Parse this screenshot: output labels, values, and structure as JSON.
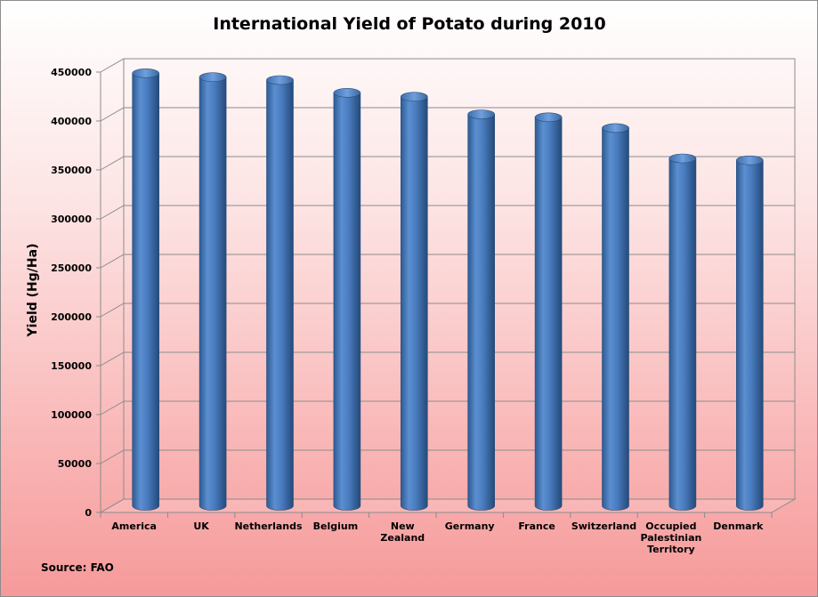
{
  "chart_data": {
    "type": "bar",
    "title": "International Yield of Potato during 2010",
    "ylabel": "Yield (Hg/Ha)",
    "xlabel": "",
    "categories": [
      "America",
      "UK",
      "Netherlands",
      "Belgium",
      "New Zealand",
      "Germany",
      "France",
      "Switzerland",
      "Occupied Palestinian Territory",
      "Denmark"
    ],
    "category_lines": [
      [
        "America"
      ],
      [
        "UK"
      ],
      [
        "Netherlands"
      ],
      [
        "Belgium"
      ],
      [
        "New",
        "Zealand"
      ],
      [
        "Germany"
      ],
      [
        "France"
      ],
      [
        "Switzerland"
      ],
      [
        "Occupied",
        "Palestinian",
        "Territory"
      ],
      [
        "Denmark"
      ]
    ],
    "values": [
      442000,
      438000,
      435000,
      422000,
      418000,
      400000,
      397000,
      386000,
      355000,
      353000
    ],
    "ylim": [
      0,
      450000
    ],
    "yticks": [
      0,
      50000,
      100000,
      150000,
      200000,
      250000,
      300000,
      350000,
      400000,
      450000
    ],
    "grid": true,
    "bar_color": "#4f81bd",
    "source": "Source: FAO"
  }
}
